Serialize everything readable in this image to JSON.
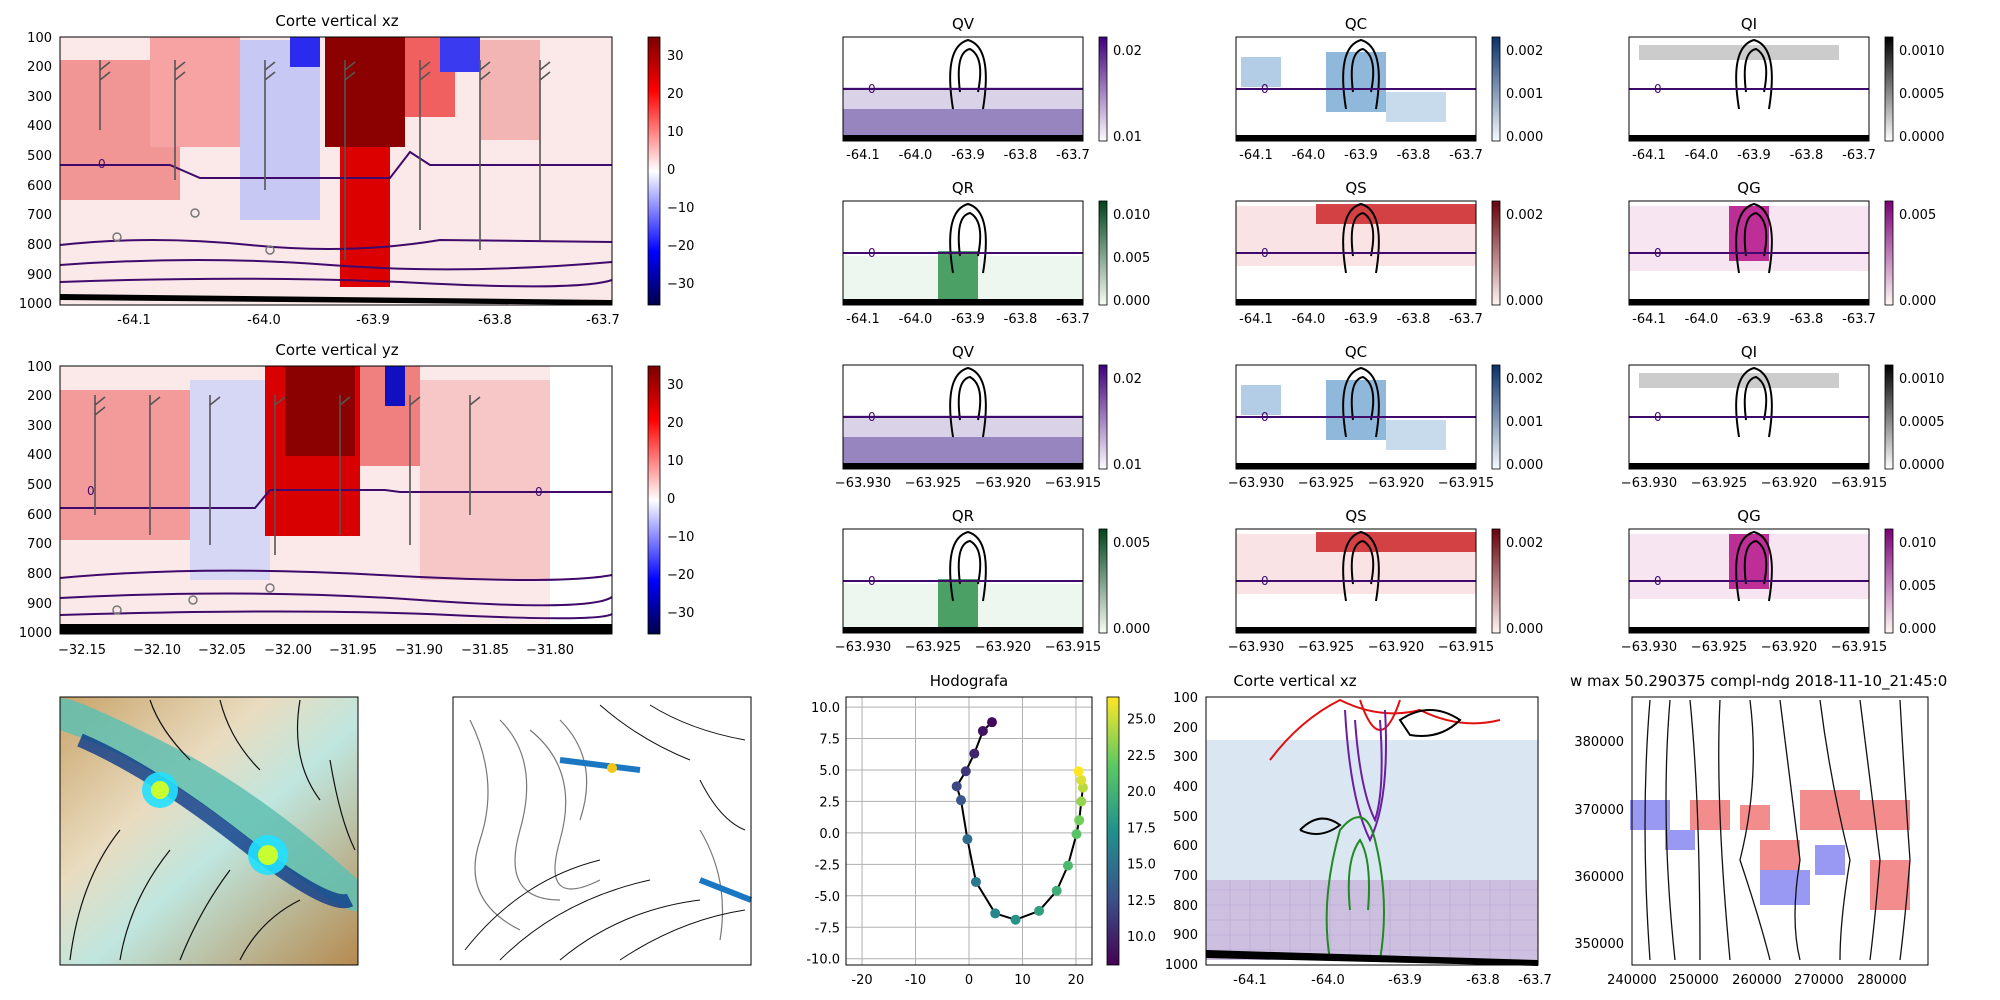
{
  "figure": {
    "panels": {
      "xz_top": {
        "title": "Corte vertical xz",
        "xticks": [
          "-64.1",
          "-64.0",
          "-63.9",
          "-63.8",
          "-63.7"
        ],
        "yticks": [
          "100",
          "200",
          "300",
          "400",
          "500",
          "600",
          "700",
          "800",
          "900",
          "1000"
        ],
        "cbar_ticks": [
          "30",
          "20",
          "10",
          "0",
          "−10",
          "−20",
          "−30"
        ],
        "contour_label": "0"
      },
      "yz": {
        "title": "Corte vertical yz",
        "xticks": [
          "−32.15",
          "−32.10",
          "−32.05",
          "−32.00",
          "−31.95",
          "−31.90",
          "−31.85",
          "−31.80"
        ],
        "yticks": [
          "100",
          "200",
          "300",
          "400",
          "500",
          "600",
          "700",
          "800",
          "900",
          "1000"
        ],
        "cbar_ticks": [
          "30",
          "20",
          "10",
          "0",
          "−10",
          "−20",
          "−30"
        ],
        "contour_label": "0"
      },
      "r1": [
        {
          "title": "QV",
          "cbar": [
            "0.02",
            "0.01"
          ],
          "cmap": "purple"
        },
        {
          "title": "QC",
          "cbar": [
            "0.002",
            "0.001",
            "0.000"
          ],
          "cmap": "blue"
        },
        {
          "title": "QI",
          "cbar": [
            "0.0010",
            "0.0005",
            "0.0000"
          ],
          "cmap": "gray"
        }
      ],
      "r2": [
        {
          "title": "QR",
          "cbar": [
            "0.010",
            "0.005",
            "0.000"
          ],
          "cmap": "green"
        },
        {
          "title": "QS",
          "cbar": [
            "0.002",
            "0.000"
          ],
          "cmap": "red"
        },
        {
          "title": "QG",
          "cbar": [
            "0.005",
            "0.000"
          ],
          "cmap": "magenta"
        }
      ],
      "r3": [
        {
          "title": "QV",
          "cbar": [
            "0.02",
            "0.01"
          ],
          "cmap": "purple"
        },
        {
          "title": "QC",
          "cbar": [
            "0.002",
            "0.001",
            "0.000"
          ],
          "cmap": "blue"
        },
        {
          "title": "QI",
          "cbar": [
            "0.0010",
            "0.0005",
            "0.0000"
          ],
          "cmap": "gray"
        }
      ],
      "r4": [
        {
          "title": "QR",
          "cbar": [
            "0.005",
            "0.000"
          ],
          "cmap": "green"
        },
        {
          "title": "QS",
          "cbar": [
            "0.002",
            "0.000"
          ],
          "cmap": "red"
        },
        {
          "title": "QG",
          "cbar": [
            "0.010",
            "0.005",
            "0.000"
          ],
          "cmap": "magenta"
        }
      ],
      "small_xticks_a": [
        "-64.1",
        "-64.0",
        "-63.9",
        "-63.8",
        "-63.7"
      ],
      "small_xticks_b": [
        "−63.930",
        "−63.925",
        "−63.920",
        "−63.915"
      ],
      "xz_bottom": {
        "title": "Corte vertical xz",
        "xticks": [
          "-64.1",
          "-64.0",
          "-63.9",
          "-63.8",
          "-63.7"
        ],
        "yticks": [
          "100",
          "200",
          "300",
          "400",
          "500",
          "600",
          "700",
          "800",
          "900",
          "1000"
        ]
      },
      "stream": {
        "title": "w max 50.290375 compl-ndg 2018-11-10_21:45:0",
        "xticks": [
          "240000",
          "250000",
          "260000",
          "270000",
          "280000"
        ],
        "yticks": [
          "380000",
          "370000",
          "360000",
          "350000"
        ]
      },
      "maps": {
        "a": "",
        "b": ""
      }
    }
  },
  "chart_data": [
    {
      "type": "line",
      "title": "Hodografa",
      "xlim": [
        -23,
        23
      ],
      "ylim": [
        -10.5,
        10.8
      ],
      "xticks": [
        -20,
        -10,
        0,
        10,
        20
      ],
      "yticks": [
        -10.0,
        -7.5,
        -5.0,
        -2.5,
        0.0,
        2.5,
        5.0,
        7.5,
        10.0
      ],
      "grid": true,
      "colorbar_ticks": [
        25.0,
        22.5,
        20.0,
        17.5,
        15.0,
        12.5,
        10.0
      ],
      "colorbar_range": [
        8,
        26.5
      ],
      "points": [
        {
          "x": 4.3,
          "y": 8.8,
          "c": 8.5
        },
        {
          "x": 2.6,
          "y": 8.1,
          "c": 9.0
        },
        {
          "x": 1.0,
          "y": 6.3,
          "c": 10.0
        },
        {
          "x": -0.6,
          "y": 4.9,
          "c": 11.0
        },
        {
          "x": -2.3,
          "y": 3.7,
          "c": 12.0
        },
        {
          "x": -1.5,
          "y": 2.6,
          "c": 13.0
        },
        {
          "x": -0.3,
          "y": -0.5,
          "c": 14.5
        },
        {
          "x": 1.3,
          "y": -3.9,
          "c": 15.5
        },
        {
          "x": 4.9,
          "y": -6.4,
          "c": 16.5
        },
        {
          "x": 8.7,
          "y": -6.9,
          "c": 17.5
        },
        {
          "x": 13.1,
          "y": -6.2,
          "c": 18.5
        },
        {
          "x": 16.4,
          "y": -4.6,
          "c": 19.5
        },
        {
          "x": 18.5,
          "y": -2.6,
          "c": 20.5
        },
        {
          "x": 20.1,
          "y": -0.1,
          "c": 21.5
        },
        {
          "x": 20.6,
          "y": 1.0,
          "c": 22.5
        },
        {
          "x": 21.0,
          "y": 2.5,
          "c": 23.5
        },
        {
          "x": 21.3,
          "y": 3.6,
          "c": 24.5
        },
        {
          "x": 21.0,
          "y": 4.2,
          "c": 25.5
        },
        {
          "x": 20.5,
          "y": 4.9,
          "c": 26.5
        }
      ]
    }
  ]
}
